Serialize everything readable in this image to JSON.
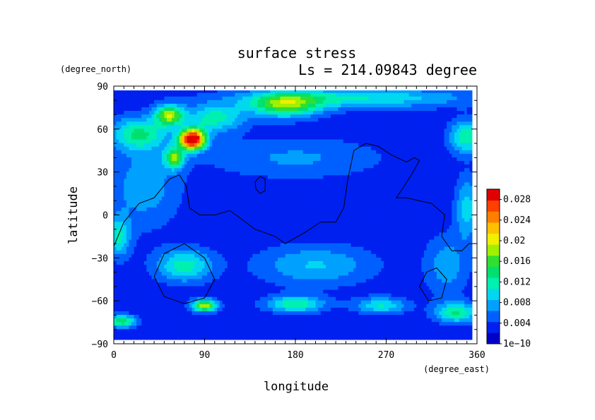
{
  "chart_data": {
    "type": "heatmap",
    "title": "surface stress",
    "subtitle": "Ls = 214.09843 degree",
    "xlabel": "longitude",
    "ylabel": "latitude",
    "x_units": "(degree_east)",
    "y_units": "(degree_north)",
    "xlim": [
      0,
      360
    ],
    "ylim": [
      -90,
      90
    ],
    "x_ticks": [
      "0",
      "90",
      "180",
      "270",
      "360"
    ],
    "y_ticks": [
      "90",
      "60",
      "30",
      "0",
      "−30",
      "−60",
      "−90"
    ],
    "x_tick_values": [
      0,
      90,
      180,
      270,
      360
    ],
    "y_tick_values": [
      90,
      60,
      30,
      0,
      -30,
      -60,
      -90
    ],
    "data_lon_range": [
      0,
      355
    ],
    "data_lat_range": [
      -87,
      87
    ],
    "colorbar": {
      "labels": [
        "1e−10",
        "0.004",
        "0.008",
        "0.012",
        "0.016",
        "0.02",
        "0.024",
        "0.028"
      ],
      "values": [
        0,
        0.004,
        0.008,
        0.012,
        0.016,
        0.02,
        0.024,
        0.028
      ],
      "vmin": 0,
      "vmax": 0.03,
      "colors": [
        "#0000c8",
        "#0020f0",
        "#0060ff",
        "#00a0ff",
        "#00d8f0",
        "#00f0b0",
        "#00e070",
        "#30e030",
        "#a0f000",
        "#f0f000",
        "#ffc000",
        "#ff8000",
        "#ff4000",
        "#e00000"
      ]
    },
    "background_value": 0.0028,
    "features": [
      {
        "lon": 78,
        "lat": 53,
        "sigma_lon": 9,
        "sigma_lat": 5,
        "value": 0.03
      },
      {
        "lon": 55,
        "lat": 70,
        "sigma_lon": 10,
        "sigma_lat": 5,
        "value": 0.015
      },
      {
        "lon": 60,
        "lat": 40,
        "sigma_lon": 7,
        "sigma_lat": 5,
        "value": 0.013
      },
      {
        "lon": 25,
        "lat": 57,
        "sigma_lon": 20,
        "sigma_lat": 8,
        "value": 0.01
      },
      {
        "lon": 170,
        "lat": 77,
        "sigma_lon": 25,
        "sigma_lat": 6,
        "value": 0.013
      },
      {
        "lon": 100,
        "lat": 68,
        "sigma_lon": 20,
        "sigma_lat": 7,
        "value": 0.009
      },
      {
        "lon": 240,
        "lat": 82,
        "sigma_lon": 80,
        "sigma_lat": 5,
        "value": 0.008
      },
      {
        "lon": 70,
        "lat": -35,
        "sigma_lon": 20,
        "sigma_lat": 8,
        "value": 0.009
      },
      {
        "lon": 90,
        "lat": -63,
        "sigma_lon": 9,
        "sigma_lat": 3,
        "value": 0.016
      },
      {
        "lon": 8,
        "lat": -74,
        "sigma_lon": 10,
        "sigma_lat": 3,
        "value": 0.012
      },
      {
        "lon": 180,
        "lat": -62,
        "sigma_lon": 20,
        "sigma_lat": 4,
        "value": 0.01
      },
      {
        "lon": 265,
        "lat": -63,
        "sigma_lon": 18,
        "sigma_lat": 4,
        "value": 0.008
      },
      {
        "lon": 340,
        "lat": -68,
        "sigma_lon": 15,
        "sigma_lat": 5,
        "value": 0.01
      },
      {
        "lon": 350,
        "lat": 55,
        "sigma_lon": 12,
        "sigma_lat": 8,
        "value": 0.01
      },
      {
        "lon": 5,
        "lat": -15,
        "sigma_lon": 8,
        "sigma_lat": 10,
        "value": 0.008
      },
      {
        "lon": 350,
        "lat": 5,
        "sigma_lon": 8,
        "sigma_lat": 15,
        "value": 0.007
      },
      {
        "lon": 30,
        "lat": 20,
        "sigma_lon": 25,
        "sigma_lat": 20,
        "value": 0.005
      },
      {
        "lon": 200,
        "lat": -35,
        "sigma_lon": 40,
        "sigma_lat": 10,
        "value": 0.006
      },
      {
        "lon": 330,
        "lat": -35,
        "sigma_lon": 15,
        "sigma_lat": 15,
        "value": 0.005
      },
      {
        "lon": 180,
        "lat": 40,
        "sigma_lon": 60,
        "sigma_lat": 10,
        "value": 0.004
      }
    ],
    "contours": [
      [
        [
          0,
          -22
        ],
        [
          10,
          -5
        ],
        [
          25,
          8
        ],
        [
          40,
          12
        ],
        [
          55,
          25
        ],
        [
          65,
          28
        ],
        [
          72,
          20
        ],
        [
          75,
          5
        ],
        [
          85,
          0
        ],
        [
          100,
          0
        ],
        [
          115,
          3
        ],
        [
          125,
          -2
        ],
        [
          140,
          -10
        ],
        [
          160,
          -15
        ],
        [
          170,
          -20
        ],
        [
          190,
          -12
        ],
        [
          205,
          -5
        ],
        [
          220,
          -5
        ],
        [
          228,
          5
        ],
        [
          232,
          25
        ],
        [
          238,
          45
        ],
        [
          250,
          50
        ],
        [
          262,
          48
        ],
        [
          275,
          42
        ],
        [
          290,
          37
        ],
        [
          298,
          40
        ],
        [
          303,
          38
        ],
        [
          295,
          28
        ],
        [
          285,
          17
        ],
        [
          280,
          12
        ],
        [
          290,
          12
        ],
        [
          315,
          8
        ],
        [
          328,
          0
        ],
        [
          325,
          -15
        ],
        [
          335,
          -25
        ],
        [
          345,
          -25
        ],
        [
          352,
          -20
        ],
        [
          358,
          -20
        ]
      ],
      [
        [
          140,
          23
        ],
        [
          145,
          27
        ],
        [
          150,
          25
        ],
        [
          150,
          17
        ],
        [
          145,
          15
        ],
        [
          141,
          18
        ],
        [
          140,
          23
        ]
      ],
      [
        [
          40,
          -43
        ],
        [
          50,
          -27
        ],
        [
          70,
          -20
        ],
        [
          90,
          -30
        ],
        [
          100,
          -45
        ],
        [
          90,
          -58
        ],
        [
          70,
          -62
        ],
        [
          50,
          -57
        ],
        [
          40,
          -43
        ]
      ],
      [
        [
          303,
          -50
        ],
        [
          310,
          -40
        ],
        [
          320,
          -37
        ],
        [
          330,
          -45
        ],
        [
          325,
          -58
        ],
        [
          312,
          -60
        ],
        [
          303,
          -50
        ]
      ]
    ]
  }
}
